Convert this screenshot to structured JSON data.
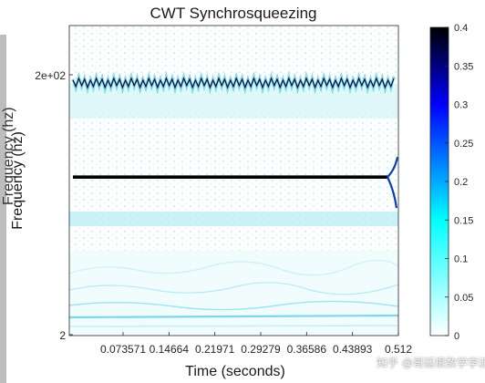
{
  "chart_data": {
    "type": "heatmap",
    "title": "CWT Synchrosqueezing",
    "xlabel": "Time (seconds)",
    "ylabel": "Frequency (hz)",
    "ylabel_ghost": "Frequency (hz)",
    "x_ticks": [
      "0.073571",
      "0.14664",
      "0.21971",
      "0.29279",
      "0.36586",
      "0.43893",
      "0.512"
    ],
    "y_ticks": [
      "2e+02",
      "2"
    ],
    "y_scale": "log",
    "ylim": [
      2,
      400
    ],
    "xlim": [
      0,
      0.512
    ],
    "colormap": "white-cyan-blue-black",
    "colorbar": {
      "ticks": [
        "0.4",
        "0.35",
        "0.3",
        "0.25",
        "0.2",
        "0.15",
        "0.1",
        "0.05",
        "0"
      ],
      "range": [
        0,
        0.4
      ]
    },
    "ridges": [
      {
        "frequency": 150,
        "note": "oscillating tone",
        "value": 0.4
      },
      {
        "frequency": 30,
        "note": "steady tone",
        "value": 0.4
      }
    ]
  },
  "watermark": "知乎 @哥廷根数学学派",
  "colors": {
    "cmap_low": "#ffffff",
    "cmap_mid": "#00ffff",
    "cmap_high": "#0000ff",
    "cmap_top": "#000000",
    "frame": "#bdbdbd"
  }
}
